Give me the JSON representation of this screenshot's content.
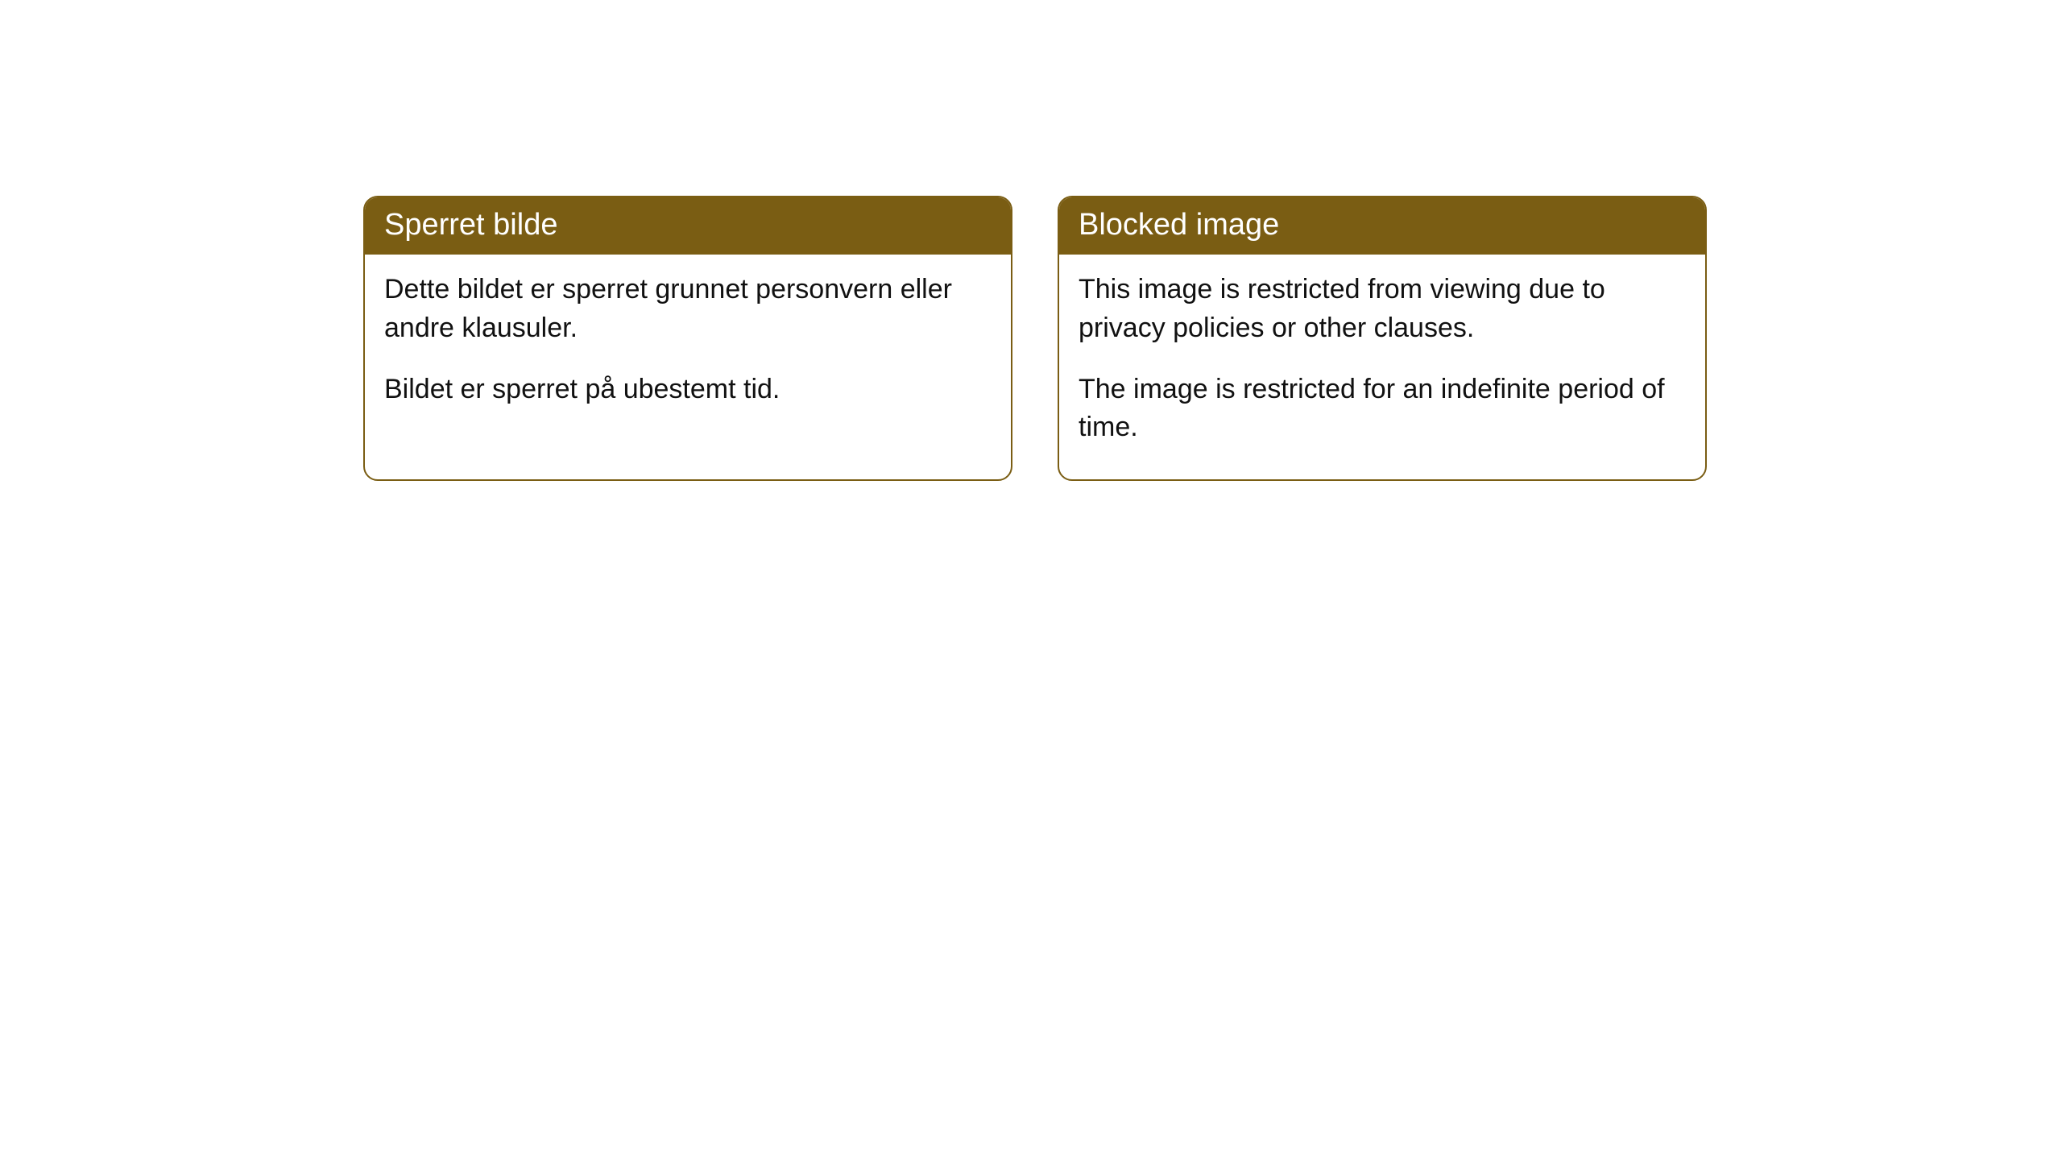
{
  "cards": [
    {
      "title": "Sperret bilde",
      "paragraph1": "Dette bildet er sperret grunnet personvern eller andre klausuler.",
      "paragraph2": "Bildet er sperret på ubestemt tid."
    },
    {
      "title": "Blocked image",
      "paragraph1": "This image is restricted from viewing due to privacy policies or other clauses.",
      "paragraph2": "The image is restricted for an indefinite period of time."
    }
  ],
  "styling": {
    "header_bg_color": "#7a5d13",
    "header_text_color": "#ffffff",
    "border_color": "#7a5d13",
    "body_text_color": "#111111",
    "background_color": "#ffffff",
    "border_radius": 18,
    "header_fontsize": 38,
    "body_fontsize": 34
  }
}
